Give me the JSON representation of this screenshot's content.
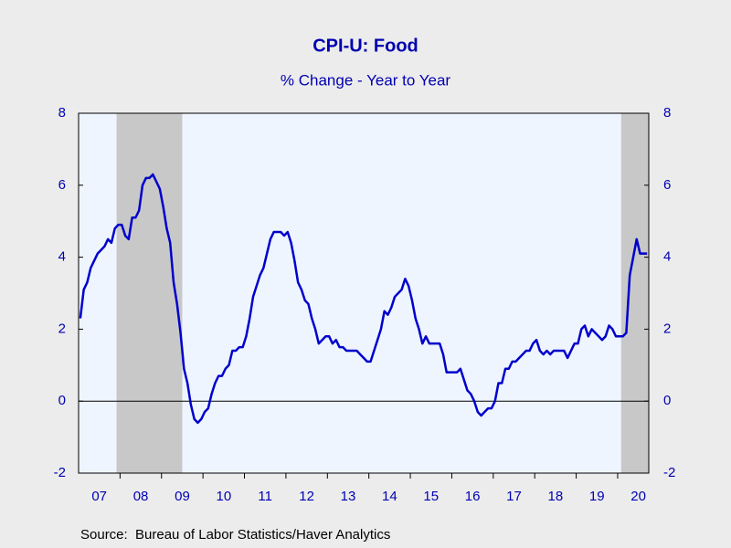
{
  "chart_data": {
    "type": "line",
    "title": "CPI-U: Food",
    "subtitle": "% Change - Year to Year",
    "source": "Source:  Bureau of Labor Statistics/Haver Analytics",
    "color": "#0000cc",
    "categories": [
      null,
      null,
      null,
      null,
      null,
      null,
      "07",
      null,
      null,
      null,
      null,
      null,
      null,
      null,
      null,
      null,
      null,
      null,
      "08",
      null,
      null,
      null,
      null,
      null,
      null,
      null,
      null,
      null,
      null,
      null,
      "09",
      null,
      null,
      null,
      null,
      null,
      null,
      null,
      null,
      null,
      null,
      null,
      "10",
      null,
      null,
      null,
      null,
      null,
      null,
      null,
      null,
      null,
      null,
      null,
      "11",
      null,
      null,
      null,
      null,
      null,
      null,
      null,
      null,
      null,
      null,
      null,
      "12",
      null,
      null,
      null,
      null,
      null,
      null,
      null,
      null,
      null,
      null,
      null,
      "13",
      null,
      null,
      null,
      null,
      null,
      null,
      null,
      null,
      null,
      null,
      null,
      "14",
      null,
      null,
      null,
      null,
      null,
      null,
      null,
      null,
      null,
      null,
      null,
      "15",
      null,
      null,
      null,
      null,
      null,
      null,
      null,
      null,
      null,
      null,
      null,
      "16",
      null,
      null,
      null,
      null,
      null,
      null,
      null,
      null,
      null,
      null,
      null,
      "17",
      null,
      null,
      null,
      null,
      null,
      null,
      null,
      null,
      null,
      null,
      null,
      "18",
      null,
      null,
      null,
      null,
      null,
      null,
      null,
      null,
      null,
      null,
      null,
      "19",
      null,
      null,
      null,
      null,
      null,
      null,
      null,
      null,
      null,
      null,
      null,
      "20",
      null,
      null
    ],
    "values": [
      2.3,
      3.1,
      3.3,
      3.7,
      3.9,
      4.1,
      4.2,
      4.3,
      4.5,
      4.4,
      4.8,
      4.9,
      4.9,
      4.6,
      4.5,
      5.1,
      5.1,
      5.3,
      6.0,
      6.2,
      6.2,
      6.3,
      6.1,
      5.9,
      5.4,
      4.8,
      4.4,
      3.3,
      2.7,
      1.9,
      0.9,
      0.5,
      -0.1,
      -0.5,
      -0.6,
      -0.5,
      -0.3,
      -0.2,
      0.2,
      0.5,
      0.7,
      0.7,
      0.9,
      1.0,
      1.4,
      1.4,
      1.5,
      1.5,
      1.8,
      2.3,
      2.9,
      3.2,
      3.5,
      3.7,
      4.1,
      4.5,
      4.7,
      4.7,
      4.7,
      4.6,
      4.7,
      4.4,
      3.9,
      3.3,
      3.1,
      2.8,
      2.7,
      2.3,
      2.0,
      1.6,
      1.7,
      1.8,
      1.8,
      1.6,
      1.7,
      1.5,
      1.5,
      1.4,
      1.4,
      1.4,
      1.4,
      1.3,
      1.2,
      1.1,
      1.1,
      1.4,
      1.7,
      2.0,
      2.5,
      2.4,
      2.6,
      2.9,
      3.0,
      3.1,
      3.4,
      3.2,
      2.8,
      2.3,
      2.0,
      1.6,
      1.8,
      1.6,
      1.6,
      1.6,
      1.6,
      1.3,
      0.8,
      0.8,
      0.8,
      0.8,
      0.9,
      0.6,
      0.3,
      0.2,
      0.0,
      -0.3,
      -0.4,
      -0.3,
      -0.2,
      -0.2,
      0.0,
      0.5,
      0.5,
      0.9,
      0.9,
      1.1,
      1.1,
      1.2,
      1.3,
      1.4,
      1.4,
      1.6,
      1.7,
      1.4,
      1.3,
      1.4,
      1.3,
      1.4,
      1.4,
      1.4,
      1.4,
      1.2,
      1.4,
      1.6,
      1.6,
      2.0,
      2.1,
      1.8,
      2.0,
      1.9,
      1.8,
      1.7,
      1.8,
      2.1,
      2.0,
      1.8,
      1.8,
      1.8,
      1.9,
      3.5,
      4.0,
      4.5,
      4.1,
      4.1,
      4.1
    ],
    "shaded_periods": [
      [
        11,
        29
      ],
      [
        157,
        164
      ]
    ],
    "ylim": [
      -2,
      8
    ],
    "yticks": [
      -2,
      0,
      2,
      4,
      6,
      8
    ],
    "y2lim": [
      -2,
      8
    ],
    "y2ticks": [
      -2,
      0,
      2,
      4,
      6,
      8
    ]
  }
}
